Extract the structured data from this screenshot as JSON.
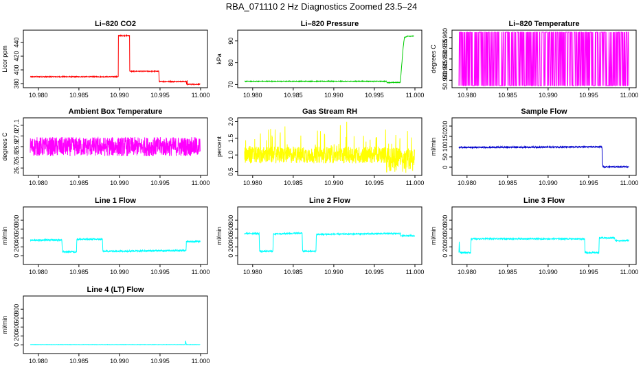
{
  "figure": {
    "title": "RBA_071110  2 Hz Diagnostics Zoomed 23.5–24"
  },
  "chart_data": [
    {
      "type": "line",
      "title": "Li–820 CO2",
      "xlabel": "",
      "ylabel": "Licor ppm",
      "xlim": [
        10.979,
        11.0
      ],
      "ylim": [
        377,
        455
      ],
      "xticks": [
        10.98,
        10.985,
        10.99,
        10.995,
        11.0
      ],
      "xtick_labels": [
        "10.980",
        "10.985",
        "10.990",
        "10.995",
        "11.000"
      ],
      "yticks": [
        380,
        400,
        420,
        440
      ],
      "ytick_labels": [
        "380",
        "400",
        "420",
        "440"
      ],
      "color": "#ff0000",
      "render": "step",
      "noise": 0.6,
      "x": [
        10.979,
        10.98985,
        10.98986,
        10.99125,
        10.99126,
        10.99487,
        10.99488,
        10.99825,
        10.99826,
        10.99835,
        10.99836,
        11.0
      ],
      "y": [
        390,
        390,
        450,
        450,
        398,
        398,
        383,
        383,
        378,
        385,
        379,
        379
      ],
      "series": [
        {
          "name": "",
          "color": "#ff0000"
        }
      ]
    },
    {
      "type": "line",
      "title": "Li–820 Pressure",
      "xlabel": "",
      "ylabel": "kPa",
      "xlim": [
        10.979,
        11.0
      ],
      "ylim": [
        69.5,
        94
      ],
      "xticks": [
        10.98,
        10.985,
        10.99,
        10.995,
        11.0
      ],
      "xtick_labels": [
        "10.980",
        "10.985",
        "10.990",
        "10.995",
        "11.000"
      ],
      "yticks": [
        70,
        80,
        90
      ],
      "ytick_labels": [
        "70",
        "80",
        "90"
      ],
      "color": "#00cc00",
      "render": "step",
      "noise": 0.15,
      "x": [
        10.979,
        10.9965,
        10.99655,
        10.9982,
        10.99835,
        10.99855,
        10.9987,
        10.99895,
        10.9991,
        10.9999
      ],
      "y": [
        71.5,
        71.5,
        70.9,
        71.0,
        78,
        87,
        91.5,
        92,
        92.2,
        92.2
      ],
      "series": [
        {
          "name": "",
          "color": "#00cc00"
        }
      ]
    },
    {
      "type": "line",
      "title": "Li–820 Temperature",
      "xlabel": "",
      "ylabel": "degrees C",
      "xlim": [
        10.979,
        11.0
      ],
      "ylim": [
        50.9375,
        50.9625
      ],
      "xticks": [
        10.98,
        10.985,
        10.99,
        10.995,
        11.0
      ],
      "xtick_labels": [
        "10.980",
        "10.985",
        "10.990",
        "10.995",
        "11.000"
      ],
      "yticks": [
        50.94,
        50.945,
        50.95,
        50.955,
        50.96
      ],
      "ytick_labels": [
        "50.940",
        "50.945",
        "50.950",
        "50.955",
        "50.960"
      ],
      "color": "#ff00ff",
      "render": "toggle",
      "low": 50.9375,
      "high": 50.9625,
      "series": [
        {
          "name": "",
          "color": "#ff00ff"
        }
      ]
    },
    {
      "type": "line",
      "title": "Ambient Box Temperature",
      "xlabel": "",
      "ylabel": "degrees C",
      "xlim": [
        10.979,
        11.0
      ],
      "ylim": [
        26.65,
        27.15
      ],
      "xticks": [
        10.98,
        10.985,
        10.99,
        10.995,
        11.0
      ],
      "xtick_labels": [
        "10.980",
        "10.985",
        "10.990",
        "10.995",
        "11.000"
      ],
      "yticks": [
        26.7,
        26.8,
        26.9,
        27.0,
        27.1
      ],
      "ytick_labels": [
        "26.7",
        "26.8",
        "26.9",
        "27.0",
        "27.1"
      ],
      "color": "#ff00ff",
      "render": "noise",
      "base": 26.9,
      "amp": 0.09,
      "series": [
        {
          "name": "",
          "color": "#ff00ff"
        }
      ]
    },
    {
      "type": "line",
      "title": "Gas Stream RH",
      "xlabel": "",
      "ylabel": "percent",
      "xlim": [
        10.979,
        11.0
      ],
      "ylim": [
        0.45,
        2.05
      ],
      "xticks": [
        10.98,
        10.985,
        10.99,
        10.995,
        11.0
      ],
      "xtick_labels": [
        "10.980",
        "10.985",
        "10.990",
        "10.995",
        "11.000"
      ],
      "yticks": [
        0.5,
        1.0,
        1.5,
        2.0
      ],
      "ytick_labels": [
        "0.5",
        "1.0",
        "1.5",
        "2.0"
      ],
      "color": "#ffff00",
      "render": "noise",
      "base": 1.0,
      "amp": 0.25,
      "spike": 0.8,
      "series": [
        {
          "name": "",
          "color": "#ffff00"
        }
      ]
    },
    {
      "type": "line",
      "title": "Sample Flow",
      "xlabel": "",
      "ylabel": "ml/min",
      "xlim": [
        10.979,
        11.0
      ],
      "ylim": [
        -30,
        230
      ],
      "xticks": [
        10.98,
        10.985,
        10.99,
        10.995,
        11.0
      ],
      "xtick_labels": [
        "10.980",
        "10.985",
        "10.990",
        "10.995",
        "11.000"
      ],
      "yticks": [
        0,
        50,
        100,
        150,
        200
      ],
      "ytick_labels": [
        "0",
        "50",
        "100",
        "150",
        "200"
      ],
      "color": "#0000cc",
      "render": "step",
      "noise": 3,
      "x": [
        10.979,
        10.9966,
        10.99665,
        10.9967,
        10.99675,
        11.0
      ],
      "y": [
        96,
        99,
        90,
        20,
        2,
        2
      ],
      "series": [
        {
          "name": "",
          "color": "#0000cc"
        }
      ]
    },
    {
      "type": "line",
      "title": "Line 1 Flow",
      "xlabel": "",
      "ylabel": "ml/min",
      "xlim": [
        10.979,
        11.0
      ],
      "ylim": [
        -150,
        1050
      ],
      "xticks": [
        10.98,
        10.985,
        10.99,
        10.995,
        11.0
      ],
      "xtick_labels": [
        "10.980",
        "10.985",
        "10.990",
        "10.995",
        "11.000"
      ],
      "yticks": [
        0,
        200,
        400,
        600,
        800
      ],
      "ytick_labels": [
        "0",
        "200",
        "400",
        "600",
        "800"
      ],
      "color": "#00ffff",
      "render": "step",
      "noise": 18,
      "x": [
        10.979,
        10.9829,
        10.98295,
        10.9847,
        10.98475,
        10.9879,
        10.98795,
        10.9982,
        10.99825,
        11.0
      ],
      "y": [
        350,
        350,
        90,
        90,
        370,
        370,
        100,
        120,
        320,
        320
      ],
      "series": [
        {
          "name": "",
          "color": "#00ffff"
        }
      ]
    },
    {
      "type": "line",
      "title": "Line 2 Flow",
      "xlabel": "",
      "ylabel": "ml/min",
      "xlim": [
        10.979,
        11.0
      ],
      "ylim": [
        -150,
        1050
      ],
      "xticks": [
        10.98,
        10.985,
        10.99,
        10.995,
        11.0
      ],
      "xtick_labels": [
        "10.980",
        "10.985",
        "10.990",
        "10.995",
        "11.000"
      ],
      "yticks": [
        0,
        200,
        400,
        600,
        800
      ],
      "ytick_labels": [
        "0",
        "200",
        "400",
        "600",
        "800"
      ],
      "color": "#00ffff",
      "render": "step",
      "noise": 15,
      "x": [
        10.979,
        10.9808,
        10.98085,
        10.9825,
        10.98255,
        10.9861,
        10.98615,
        10.9878,
        10.98785,
        10.9982,
        10.99825,
        11.0
      ],
      "y": [
        500,
        500,
        100,
        100,
        490,
        510,
        100,
        100,
        480,
        500,
        450,
        450
      ],
      "series": [
        {
          "name": "",
          "color": "#00ffff"
        }
      ]
    },
    {
      "type": "line",
      "title": "Line 3 Flow",
      "xlabel": "",
      "ylabel": "ml/min",
      "xlim": [
        10.979,
        11.0
      ],
      "ylim": [
        -150,
        1050
      ],
      "xticks": [
        10.98,
        10.985,
        10.99,
        10.995,
        11.0
      ],
      "xtick_labels": [
        "10.980",
        "10.985",
        "10.990",
        "10.995",
        "11.000"
      ],
      "yticks": [
        0,
        200,
        400,
        600,
        800
      ],
      "ytick_labels": [
        "0",
        "200",
        "400",
        "600",
        "800"
      ],
      "color": "#00ffff",
      "render": "step",
      "noise": 15,
      "x": [
        10.979,
        10.97905,
        10.9791,
        10.98045,
        10.9805,
        10.9945,
        10.99455,
        10.99625,
        10.9963,
        10.9982,
        10.99825,
        11.0
      ],
      "y": [
        80,
        330,
        70,
        70,
        380,
        380,
        70,
        70,
        400,
        400,
        340,
        340
      ],
      "series": [
        {
          "name": "",
          "color": "#00ffff"
        }
      ]
    },
    {
      "type": "line",
      "title": "Line 4 (LT) Flow",
      "xlabel": "",
      "ylabel": "ml/min",
      "xlim": [
        10.979,
        11.0
      ],
      "ylim": [
        -150,
        1050
      ],
      "xticks": [
        10.98,
        10.985,
        10.99,
        10.995,
        11.0
      ],
      "xtick_labels": [
        "10.980",
        "10.985",
        "10.990",
        "10.995",
        "11.000"
      ],
      "yticks": [
        0,
        200,
        400,
        600,
        800
      ],
      "ytick_labels": [
        "0",
        "200",
        "400",
        "600",
        "800"
      ],
      "color": "#00ffff",
      "render": "step",
      "noise": 3,
      "x": [
        10.979,
        10.9981,
        10.99815,
        10.9982,
        10.99825,
        11.0
      ],
      "y": [
        5,
        5,
        100,
        40,
        5,
        5
      ],
      "series": [
        {
          "name": "",
          "color": "#00ffff"
        }
      ]
    }
  ]
}
